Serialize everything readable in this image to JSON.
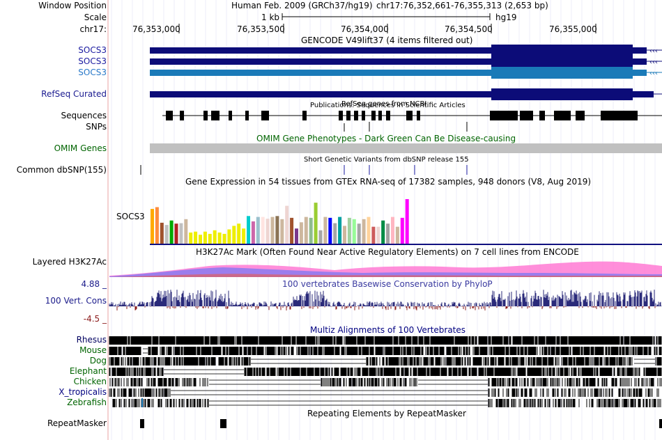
{
  "labels": {
    "window_position": "Window Position",
    "scale": "Scale",
    "chrom": "chr17:",
    "gencode1": "SOCS3",
    "gencode2": "SOCS3",
    "gencode3": "SOCS3",
    "refseq": "RefSeq Curated",
    "sequences": "Sequences",
    "snps": "SNPs",
    "omim": "OMIM Genes",
    "common_dbsnp": "Common dbSNP(155)",
    "gtex_gene": "SOCS3",
    "h3k27ac": "Layered H3K27Ac",
    "cons_max": "4.88 _",
    "cons_label": "100 Vert. Cons",
    "cons_min": "-4.5 _",
    "species": [
      "Rhesus",
      "Mouse",
      "Dog",
      "Elephant",
      "Chicken",
      "X_tropicalis",
      "Zebrafish"
    ],
    "repeatmasker": "RepeatMasker"
  },
  "header": {
    "assembly": "Human Feb. 2009 (GRCh37/hg19)",
    "position": "chr17:76,352,661-76,355,313 (2,653 bp)",
    "scale_text": "1 kb",
    "scale_db": "hg19",
    "ticks": [
      "76,353,000",
      "76,353,500",
      "76,354,000",
      "76,354,500",
      "76,355,000"
    ]
  },
  "tracks": {
    "gencode_title": "GENCODE V49lift37 (4 items filtered out)",
    "refseq_title": "RefSeq genes from NCBI",
    "pubs_title": "Publications: Sequences in Scientific Articles",
    "omim_title": "OMIM Gene Phenotypes - Dark Green Can Be Disease-causing",
    "dbsnp_title": "Short Genetic Variants from dbSNP release 155",
    "gtex_title": "Gene Expression in 54 tissues from GTEx RNA-seq of 17382 samples, 948 donors (V8, Aug 2019)",
    "h3k27ac_title": "H3K27Ac Mark (Often Found Near Active Regulatory Elements) on 7 cell lines from ENCODE",
    "cons_title": "100 vertebrates Basewise Conservation by PhyloP",
    "multiz_title": "Multiz Alignments of 100 Vertebrates",
    "repeat_title": "Repeating Elements by RepeatMasker"
  },
  "gtex": {
    "values": [
      0.78,
      0.82,
      0.47,
      0.42,
      0.52,
      0.45,
      0.46,
      0.55,
      0.25,
      0.27,
      0.2,
      0.27,
      0.22,
      0.3,
      0.25,
      0.22,
      0.32,
      0.4,
      0.45,
      0.34,
      0.62,
      0.5,
      0.6,
      0.6,
      0.56,
      0.6,
      0.62,
      0.55,
      0.85,
      0.58,
      0.34,
      0.48,
      0.6,
      0.58,
      0.92,
      0.3,
      0.6,
      0.58,
      0.46,
      0.6,
      0.4,
      0.58,
      0.55,
      0.45,
      0.55,
      0.6,
      0.38,
      0.38,
      0.52,
      0.45,
      0.6,
      0.38,
      0.58,
      1.0
    ],
    "colors": [
      "#FFAA00",
      "#FF8B3C",
      "#A0522D",
      "#C0C0C0",
      "#00AA00",
      "#B22222",
      "#C0C0C0",
      "#CDB79E",
      "#EEEE00",
      "#EEEE00",
      "#EEEE00",
      "#EEEE00",
      "#EEEE00",
      "#EEEE00",
      "#EEEE00",
      "#EEEE00",
      "#EEEE00",
      "#EEEE00",
      "#EEEE00",
      "#EEEE00",
      "#00CDCD",
      "#CC66AA",
      "#9AC0CD",
      "#FFE4E1",
      "#EED5D2",
      "#CDB79E",
      "#8B7355",
      "#CDB79E",
      "#EED5D2",
      "#A0522D",
      "#7A378B",
      "#CDB79E",
      "#CDB79E",
      "#8FBC8F",
      "#9ACD32",
      "#A6A6A6",
      "#CDB79E",
      "#0000FF",
      "#A6A6A6",
      "#00A0A0",
      "#CDB79E",
      "#A0D0A0",
      "#98FB98",
      "#A6A6A6",
      "#CDB79E",
      "#FFD39B",
      "#CD5C5C",
      "#EED5D2",
      "#008B45",
      "#A0A0A0",
      "#FFB6C1",
      "#CDB79E",
      "#FF00FF",
      "#FF00FF"
    ]
  }
}
